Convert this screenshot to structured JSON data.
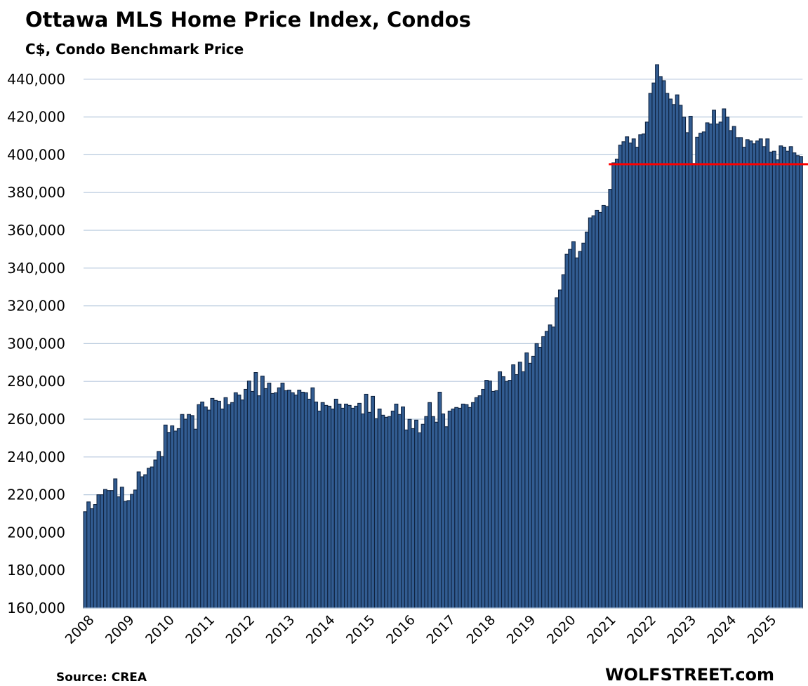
{
  "chart_data": {
    "type": "bar",
    "title": "Ottawa MLS Home Price Index, Condos",
    "subtitle": "C$, Condo Benchmark Price",
    "xlabel": "",
    "ylabel": "",
    "frequency": "monthly",
    "start": "2008-01",
    "x_tick_labels": [
      "2008",
      "2009",
      "2010",
      "2011",
      "2012",
      "2013",
      "2014",
      "2015",
      "2016",
      "2017",
      "2018",
      "2019",
      "2020",
      "2021",
      "2022",
      "2023",
      "2024",
      "2025"
    ],
    "y_ticks": [
      160000,
      180000,
      200000,
      220000,
      240000,
      260000,
      280000,
      300000,
      320000,
      340000,
      360000,
      380000,
      400000,
      420000,
      440000
    ],
    "y_tick_labels": [
      "160,000",
      "180,000",
      "200,000",
      "220,000",
      "240,000",
      "260,000",
      "280,000",
      "300,000",
      "320,000",
      "340,000",
      "360,000",
      "380,000",
      "400,000",
      "420,000",
      "440,000"
    ],
    "ylim": [
      160000,
      450000
    ],
    "grid": true,
    "legend": "none",
    "reference_line": {
      "value": 395000,
      "color": "#ff0000",
      "from_index": 156
    },
    "bar_color": "#325c91",
    "values": [
      211000,
      216200,
      212600,
      214800,
      220000,
      220000,
      222800,
      222200,
      222200,
      228400,
      218900,
      224000,
      216500,
      216900,
      220200,
      222500,
      232100,
      229500,
      230600,
      234000,
      234700,
      238400,
      242900,
      240200,
      256900,
      253000,
      256500,
      253700,
      255000,
      262500,
      260000,
      262500,
      261900,
      254700,
      267700,
      269100,
      266500,
      264800,
      271000,
      269900,
      269500,
      265400,
      271400,
      267700,
      268800,
      274000,
      272800,
      270200,
      275800,
      280200,
      274700,
      284700,
      272400,
      282800,
      276200,
      279100,
      273600,
      274000,
      276600,
      279100,
      275100,
      275400,
      274000,
      272800,
      275400,
      274300,
      274000,
      270600,
      276600,
      269100,
      264300,
      268800,
      267300,
      266900,
      265400,
      270600,
      268000,
      265800,
      268000,
      267300,
      265800,
      266900,
      268400,
      262800,
      273200,
      263600,
      272100,
      260300,
      265400,
      262100,
      261000,
      261400,
      264300,
      268000,
      262500,
      266500,
      254300,
      259900,
      255000,
      259500,
      252800,
      257300,
      261400,
      268800,
      261400,
      258400,
      274300,
      262800,
      256000,
      264300,
      265400,
      266200,
      265800,
      268000,
      267700,
      266200,
      268800,
      271400,
      272400,
      275800,
      280600,
      280200,
      274700,
      275100,
      285100,
      282500,
      280000,
      280600,
      288800,
      283600,
      290200,
      285100,
      295100,
      289600,
      293300,
      300000,
      298100,
      303700,
      306500,
      309900,
      308800,
      324300,
      328400,
      336500,
      347300,
      349900,
      354000,
      345400,
      348800,
      353200,
      359100,
      366600,
      367700,
      370600,
      369500,
      373200,
      372600,
      381700,
      395700,
      397700,
      405100,
      406900,
      409500,
      406200,
      408400,
      404000,
      410600,
      411000,
      417300,
      432500,
      438000,
      447700,
      441400,
      439200,
      432500,
      429500,
      426600,
      431700,
      426200,
      419900,
      411700,
      420400,
      395400,
      409300,
      411400,
      412100,
      416900,
      416300,
      423600,
      416300,
      417300,
      424300,
      419900,
      412800,
      415000,
      409100,
      409100,
      404000,
      408000,
      407300,
      405800,
      407300,
      408400,
      404300,
      408400,
      401400,
      401900,
      397300,
      404700,
      404000,
      401900,
      404300,
      401000,
      399500,
      399100
    ],
    "source": "Source: CREA",
    "watermark": "WOLFSTREET.com"
  }
}
